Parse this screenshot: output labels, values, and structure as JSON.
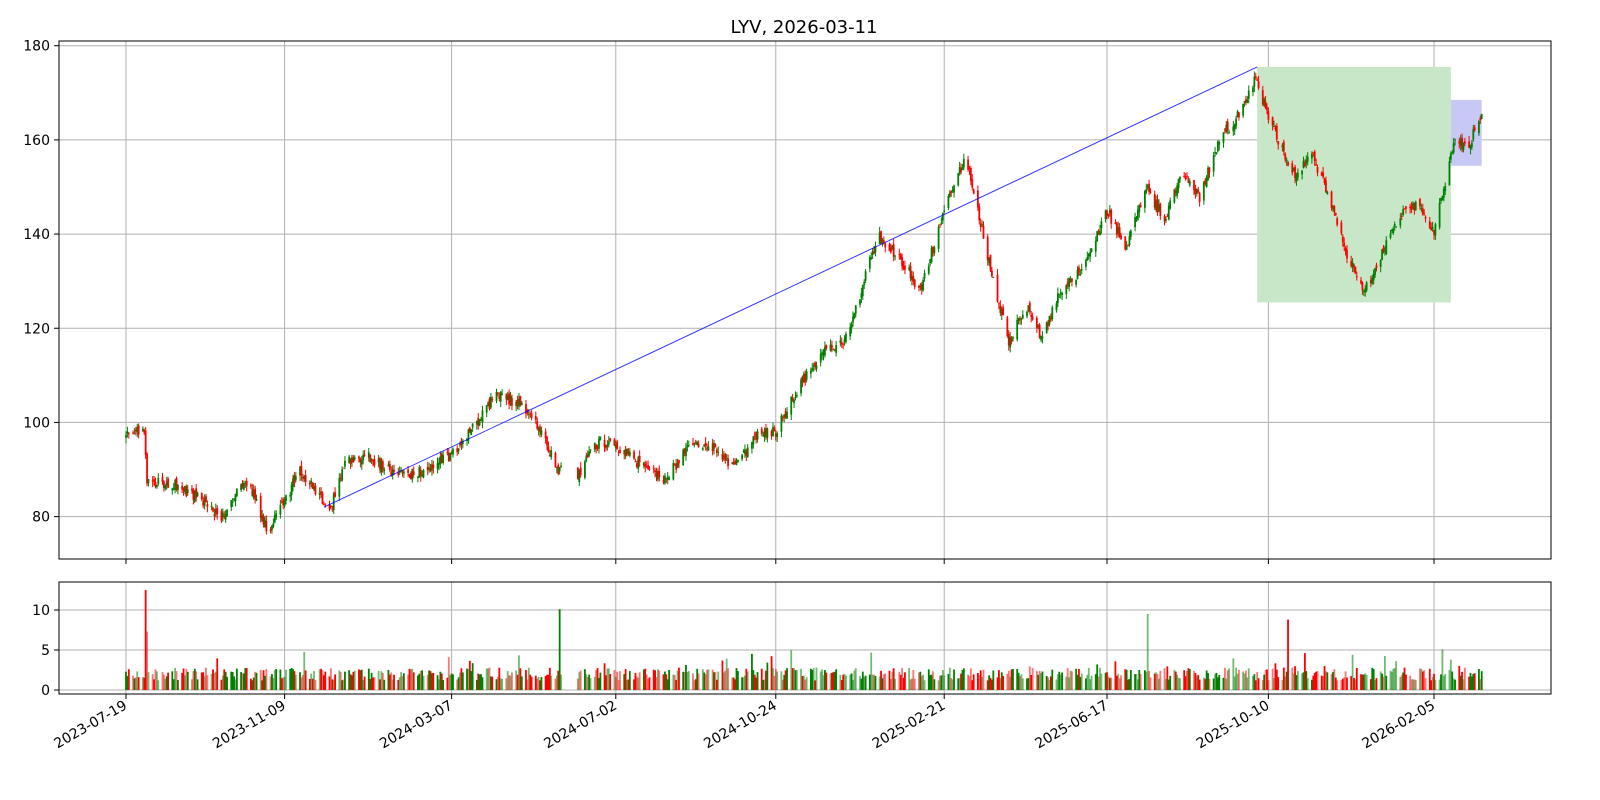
{
  "chart_data": {
    "type": "candlestick",
    "title": "LYV, 2026-03-11",
    "x_tick_labels": [
      "2023-07-19",
      "2023-11-09",
      "2024-03-07",
      "2024-07-02",
      "2024-10-24",
      "2025-02-21",
      "2025-06-17",
      "2025-10-10",
      "2026-02-05"
    ],
    "price_axis": {
      "ylim": [
        71,
        181
      ],
      "ticks": [
        80,
        100,
        120,
        140,
        160,
        180
      ]
    },
    "volume_axis": {
      "ylim": [
        -0.5,
        13.5
      ],
      "ticks": [
        0,
        5,
        10
      ]
    },
    "grid": true,
    "colors": {
      "up": "#008000",
      "down": "#ff0000",
      "trendline": "#0000ff",
      "green_zone": "#c8e6c8",
      "blue_zone": "#c8c8f5"
    },
    "price_anchors": [
      {
        "date": "2023-07-19",
        "close": 97
      },
      {
        "date": "2023-07-25",
        "close": 98
      },
      {
        "date": "2023-08-01",
        "close": 99
      },
      {
        "date": "2023-08-03",
        "close": 87
      },
      {
        "date": "2023-08-20",
        "close": 87
      },
      {
        "date": "2023-09-10",
        "close": 84
      },
      {
        "date": "2023-09-25",
        "close": 80
      },
      {
        "date": "2023-10-05",
        "close": 85
      },
      {
        "date": "2023-10-15",
        "close": 87
      },
      {
        "date": "2023-10-28",
        "close": 77
      },
      {
        "date": "2023-11-05",
        "close": 81
      },
      {
        "date": "2023-11-20",
        "close": 90
      },
      {
        "date": "2023-12-02",
        "close": 85
      },
      {
        "date": "2023-12-12",
        "close": 82
      },
      {
        "date": "2023-12-22",
        "close": 92
      },
      {
        "date": "2024-01-08",
        "close": 93
      },
      {
        "date": "2024-01-20",
        "close": 90
      },
      {
        "date": "2024-02-10",
        "close": 89
      },
      {
        "date": "2024-03-07",
        "close": 93
      },
      {
        "date": "2024-03-25",
        "close": 100
      },
      {
        "date": "2024-04-08",
        "close": 106
      },
      {
        "date": "2024-04-25",
        "close": 104
      },
      {
        "date": "2024-05-10",
        "close": 98
      },
      {
        "date": "2024-05-22",
        "close": 90
      },
      {
        "date": "2024-06-05",
        "close": 89
      },
      {
        "date": "2024-06-20",
        "close": 96
      },
      {
        "date": "2024-07-02",
        "close": 95
      },
      {
        "date": "2024-07-25",
        "close": 90
      },
      {
        "date": "2024-08-07",
        "close": 88
      },
      {
        "date": "2024-08-25",
        "close": 96
      },
      {
        "date": "2024-09-10",
        "close": 95
      },
      {
        "date": "2024-09-24",
        "close": 90
      },
      {
        "date": "2024-10-10",
        "close": 97
      },
      {
        "date": "2024-10-24",
        "close": 98
      },
      {
        "date": "2024-11-10",
        "close": 108
      },
      {
        "date": "2024-11-28",
        "close": 115
      },
      {
        "date": "2024-12-12",
        "close": 117
      },
      {
        "date": "2024-12-20",
        "close": 124
      },
      {
        "date": "2025-01-05",
        "close": 140
      },
      {
        "date": "2025-01-20",
        "close": 135
      },
      {
        "date": "2025-02-04",
        "close": 128
      },
      {
        "date": "2025-02-21",
        "close": 145
      },
      {
        "date": "2025-03-08",
        "close": 156
      },
      {
        "date": "2025-03-15",
        "close": 148
      },
      {
        "date": "2025-03-28",
        "close": 130
      },
      {
        "date": "2025-04-08",
        "close": 117
      },
      {
        "date": "2025-04-20",
        "close": 125
      },
      {
        "date": "2025-05-02",
        "close": 118
      },
      {
        "date": "2025-05-15",
        "close": 128
      },
      {
        "date": "2025-06-01",
        "close": 133
      },
      {
        "date": "2025-06-17",
        "close": 145
      },
      {
        "date": "2025-07-01",
        "close": 137
      },
      {
        "date": "2025-07-15",
        "close": 150
      },
      {
        "date": "2025-07-28",
        "close": 143
      },
      {
        "date": "2025-08-10",
        "close": 153
      },
      {
        "date": "2025-08-22",
        "close": 148
      },
      {
        "date": "2025-09-05",
        "close": 160
      },
      {
        "date": "2025-09-20",
        "close": 166
      },
      {
        "date": "2025-10-01",
        "close": 173
      },
      {
        "date": "2025-10-10",
        "close": 165
      },
      {
        "date": "2025-10-20",
        "close": 158
      },
      {
        "date": "2025-10-30",
        "close": 152
      },
      {
        "date": "2025-11-10",
        "close": 157
      },
      {
        "date": "2025-11-25",
        "close": 146
      },
      {
        "date": "2025-12-05",
        "close": 135
      },
      {
        "date": "2025-12-18",
        "close": 128
      },
      {
        "date": "2026-01-05",
        "close": 140
      },
      {
        "date": "2026-01-15",
        "close": 145
      },
      {
        "date": "2026-01-25",
        "close": 146
      },
      {
        "date": "2026-02-05",
        "close": 140
      },
      {
        "date": "2026-02-12",
        "close": 150
      },
      {
        "date": "2026-02-20",
        "close": 160
      },
      {
        "date": "2026-03-01",
        "close": 158
      },
      {
        "date": "2026-03-11",
        "close": 166
      }
    ],
    "trendline": {
      "start": {
        "date": "2023-12-07",
        "price": 82
      },
      "end": {
        "date": "2025-10-02",
        "price": 175.5
      }
    },
    "zones": [
      {
        "name": "green-zone",
        "x0": "2025-10-02",
        "x1": "2026-02-17",
        "y0": 125.5,
        "y1": 175.5
      },
      {
        "name": "blue-zone",
        "x0": "2026-02-17",
        "x1": "2026-03-11",
        "y0": 154.5,
        "y1": 168.5
      }
    ],
    "gaps": [
      [
        "2024-05-24",
        "2024-06-05"
      ]
    ],
    "volume_spikes": [
      {
        "date": "2023-08-02",
        "value": 12.5
      },
      {
        "date": "2023-08-03",
        "value": 7.3
      },
      {
        "date": "2024-05-23",
        "value": 10.1
      },
      {
        "date": "2025-07-16",
        "value": 9.5
      },
      {
        "date": "2025-10-24",
        "value": 8.8
      }
    ]
  }
}
